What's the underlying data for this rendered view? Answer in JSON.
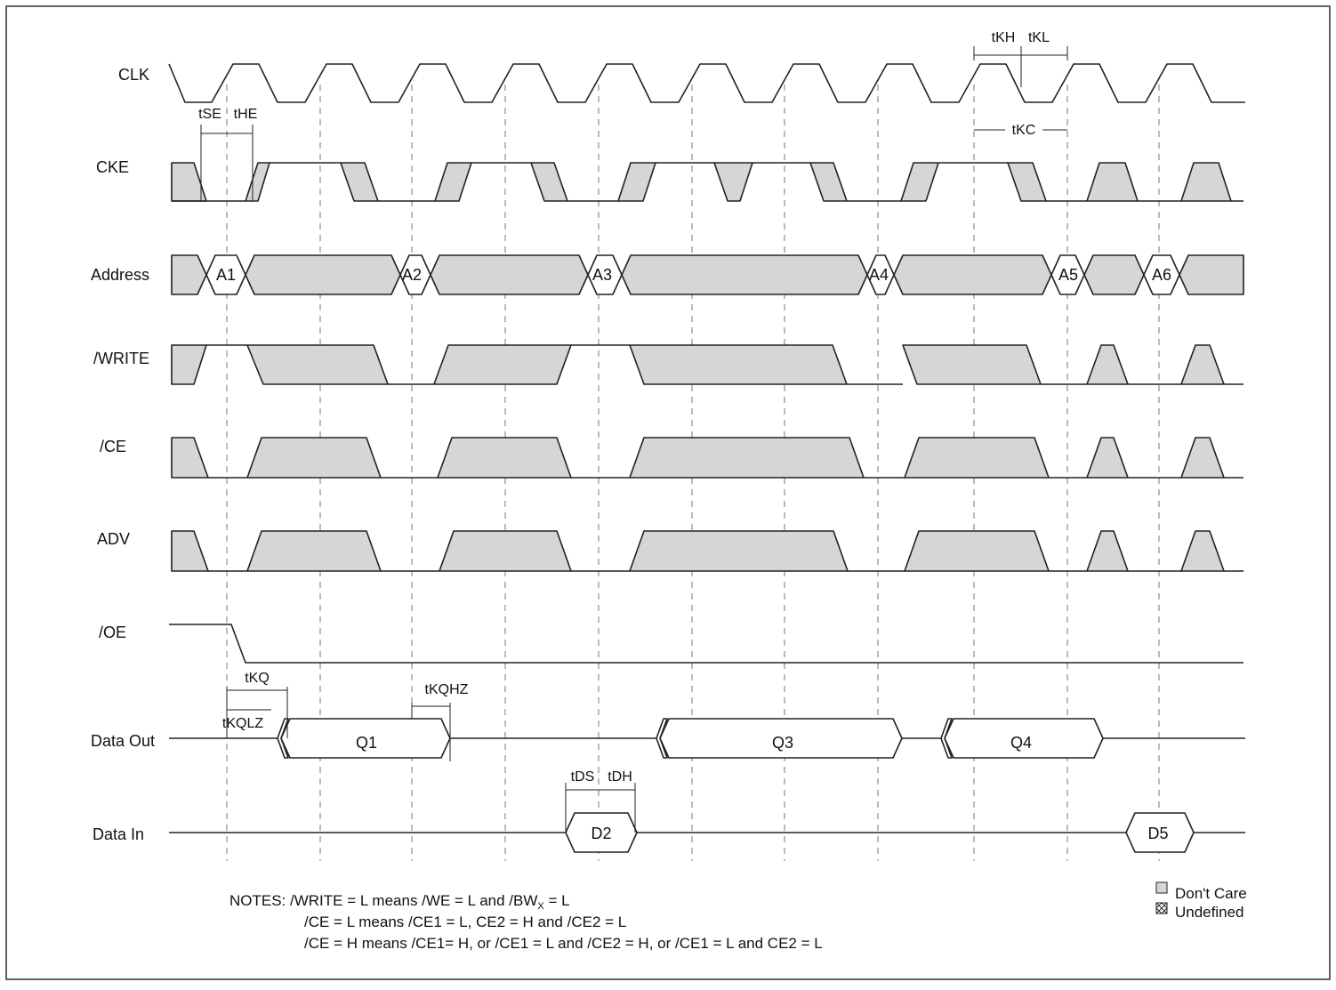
{
  "signals": [
    {
      "key": "clk",
      "label": "CLK"
    },
    {
      "key": "cke",
      "label": "CKE"
    },
    {
      "key": "addr",
      "label": "Address"
    },
    {
      "key": "write",
      "label": "/WRITE"
    },
    {
      "key": "ce",
      "label": "/CE"
    },
    {
      "key": "adv",
      "label": "ADV"
    },
    {
      "key": "oe",
      "label": "/OE"
    },
    {
      "key": "dout",
      "label": "Data Out"
    },
    {
      "key": "din",
      "label": "Data In"
    }
  ],
  "addresses": [
    "A1",
    "A2",
    "A3",
    "A4",
    "A5",
    "A6"
  ],
  "data_out": [
    "Q1",
    "Q3",
    "Q4"
  ],
  "data_in": [
    "D2",
    "D5"
  ],
  "timing_labels": {
    "tse": "tSE",
    "the": "tHE",
    "tkh": "tKH",
    "tkl": "tKL",
    "tkc": "tKC",
    "tkq": "tKQ",
    "tkqlz": "tKQLZ",
    "tkqhz": "tKQHZ",
    "tds": "tDS",
    "tdh": "tDH"
  },
  "notes": {
    "line1_prefix": "NOTES: /WRITE = L means /WE = L and /BW",
    "line1_sub": "X",
    "line1_suffix": " = L",
    "line2": "/CE = L means /CE1 = L, CE2 = H and /CE2 = L",
    "line3": "/CE = H means /CE1= H, or /CE1 = L and /CE2 = H, or /CE1 = L and CE2 = L"
  },
  "legend": {
    "dont_care": "Don't Care",
    "undefined": "Undefined"
  },
  "colors": {
    "dont_care_fill": "#d6d6d6",
    "line": "#222222"
  }
}
